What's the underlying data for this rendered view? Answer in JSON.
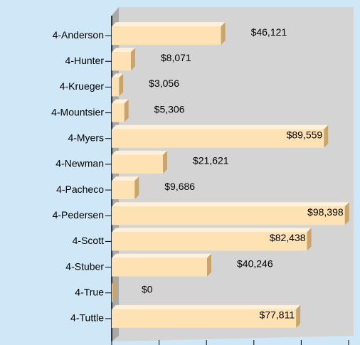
{
  "chart_data": {
    "type": "bar",
    "orientation": "horizontal",
    "categories": [
      "4-Anderson",
      "4-Hunter",
      "4-Krueger",
      "4-Mountsier",
      "4-Myers",
      "4-Newman",
      "4-Pacheco",
      "4-Pedersen",
      "4-Scott",
      "4-Stuber",
      "4-True",
      "4-Tuttle"
    ],
    "values": [
      46121,
      8071,
      3056,
      5306,
      89559,
      21621,
      9686,
      98398,
      82438,
      40246,
      0,
      77811
    ],
    "value_labels": [
      "$46,121",
      "$8,071",
      "$3,056",
      "$5,306",
      "$89,559",
      "$21,621",
      "$9,686",
      "$98,398",
      "$82,438",
      "$40,246",
      "$0",
      "$77,811"
    ],
    "color": "#ffe2b4",
    "xlim": [
      0,
      100000
    ],
    "xticks": [
      0,
      20000,
      40000,
      60000,
      80000,
      100000
    ]
  }
}
